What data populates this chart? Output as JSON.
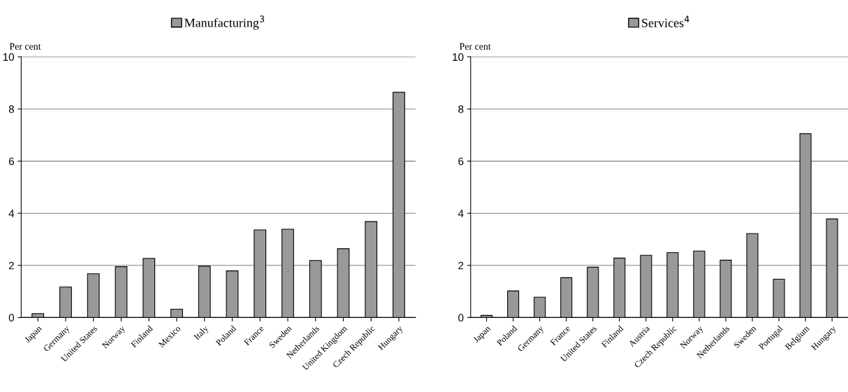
{
  "chart_data": [
    {
      "type": "bar",
      "categories": [
        "Japan",
        "Germany",
        "United States",
        "Norway",
        "Finland",
        "Mexico",
        "Italy",
        "Poland",
        "France",
        "Sweden",
        "Netherlands",
        "United Kingdom",
        "Czech Republic",
        "Hungary"
      ],
      "series": [
        {
          "name": "Manufacturing$^{3}$",
          "color": "#999999",
          "values": [
            0.15,
            1.17,
            1.68,
            1.95,
            2.27,
            0.32,
            1.97,
            1.79,
            3.36,
            3.39,
            2.19,
            2.64,
            3.68,
            8.64
          ]
        }
      ],
      "ylabel": "Per cent",
      "ylim": [
        0,
        10
      ],
      "yticks": [
        0,
        2,
        4,
        6,
        8,
        10
      ],
      "grid": "y",
      "legend": "top"
    },
    {
      "type": "bar",
      "categories": [
        "Japan",
        "Poland",
        "Germany",
        "France",
        "United States",
        "Finland",
        "Austria",
        "Czech Republic",
        "Norway",
        "Netherlands",
        "Sweden",
        "Portugal",
        "Belgium",
        "Hungary"
      ],
      "series": [
        {
          "name": "Services$^{4}$",
          "color": "#999999",
          "values": [
            0.08,
            1.02,
            0.78,
            1.53,
            1.93,
            2.28,
            2.39,
            2.49,
            2.55,
            2.2,
            3.22,
            1.47,
            7.05,
            3.78
          ]
        }
      ],
      "ylabel": "Per cent",
      "ylim": [
        0,
        10
      ],
      "yticks": [
        0,
        2,
        4,
        6,
        8,
        10
      ],
      "grid": "y",
      "legend": "top"
    }
  ]
}
